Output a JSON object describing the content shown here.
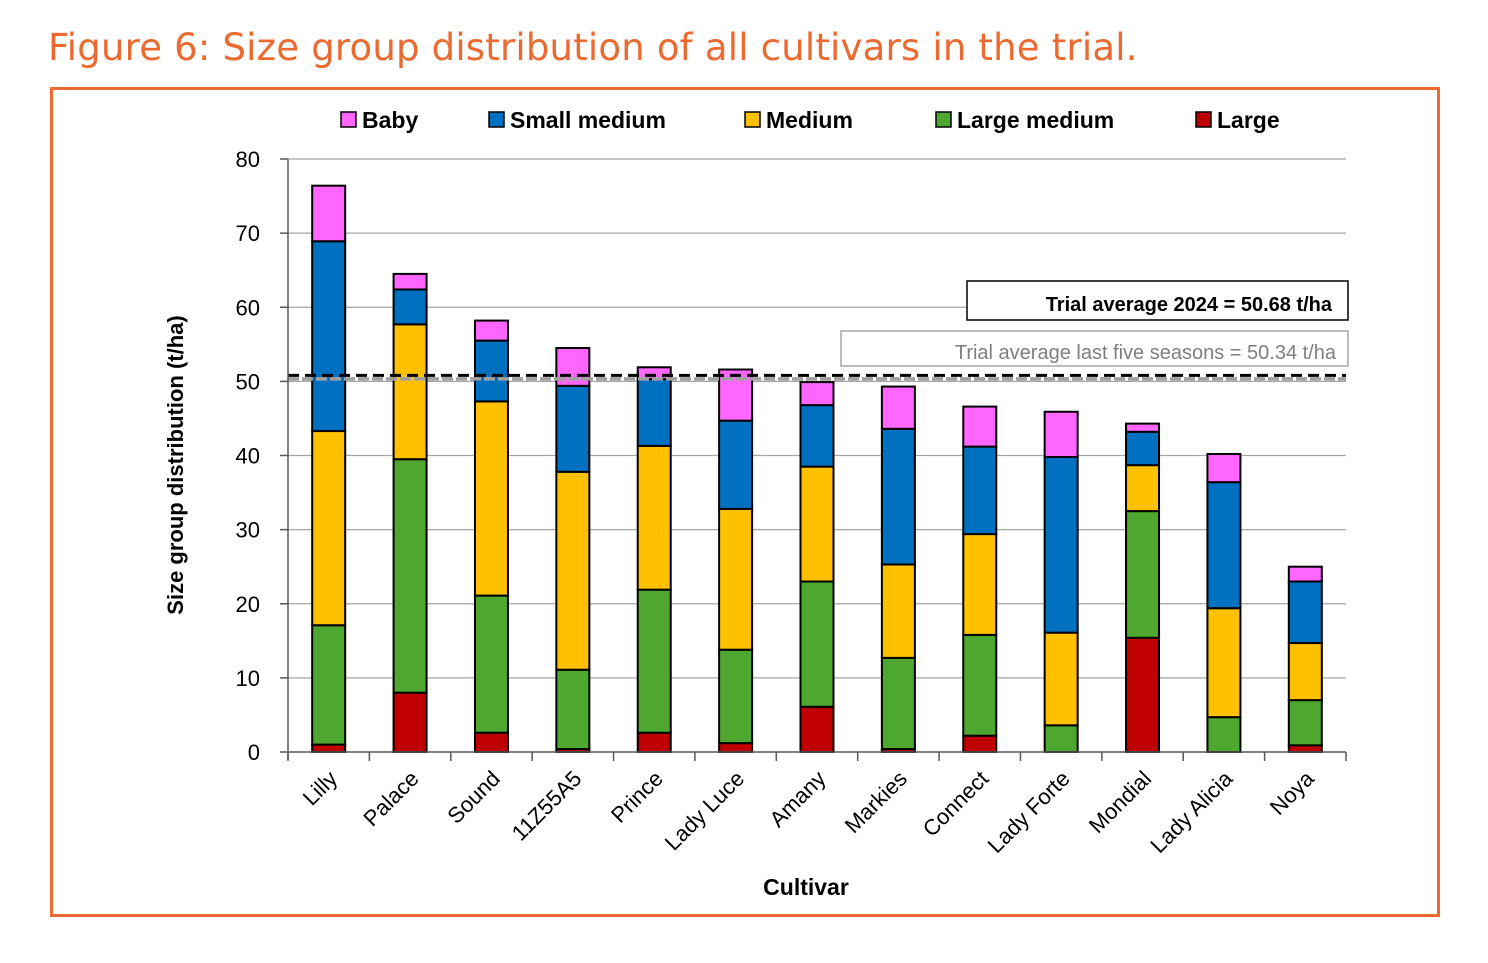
{
  "figure": {
    "title": "Figure 6: Size group distribution of all cultivars in the trial."
  },
  "chart_data": {
    "type": "bar",
    "stacked": true,
    "title": "",
    "xlabel": "Cultivar",
    "ylabel": "Size group distribution (t/ha)",
    "ylim": [
      0,
      80
    ],
    "yticks": [
      0,
      10,
      20,
      30,
      40,
      50,
      60,
      70,
      80
    ],
    "grid": true,
    "legend_position": "top",
    "categories": [
      "Lilly",
      "Palace",
      "Sound",
      "11Z55A5",
      "Prince",
      "Lady Luce",
      "Amany",
      "Markies",
      "Connect",
      "Lady Forte",
      "Mondial",
      "Lady Alicia",
      "Noya"
    ],
    "series": [
      {
        "name": "Large",
        "color": "#c00000",
        "values": [
          1.0,
          8.0,
          2.6,
          0.4,
          2.6,
          1.2,
          6.1,
          0.4,
          2.2,
          0.0,
          15.4,
          0.0,
          0.9
        ]
      },
      {
        "name": "Large medium",
        "color": "#4ea72e",
        "values": [
          16.1,
          31.5,
          18.5,
          10.7,
          19.3,
          12.6,
          16.9,
          12.3,
          13.6,
          3.6,
          17.1,
          4.7,
          6.1
        ]
      },
      {
        "name": "Medium",
        "color": "#ffc000",
        "values": [
          26.2,
          18.2,
          26.2,
          26.7,
          19.4,
          19.0,
          15.5,
          12.6,
          13.6,
          12.5,
          6.2,
          14.7,
          7.7
        ]
      },
      {
        "name": "Small medium",
        "color": "#0070c0",
        "values": [
          25.6,
          4.7,
          8.2,
          11.6,
          9.0,
          11.9,
          8.3,
          18.3,
          11.8,
          23.7,
          4.5,
          17.0,
          8.3
        ]
      },
      {
        "name": "Baby",
        "color": "#ff66ff",
        "values": [
          7.5,
          2.1,
          2.7,
          5.1,
          1.6,
          6.9,
          3.1,
          5.7,
          5.4,
          6.1,
          1.1,
          3.8,
          2.0
        ]
      }
    ],
    "legend_order": [
      "Baby",
      "Small medium",
      "Medium",
      "Large medium",
      "Large"
    ],
    "reference_lines": [
      {
        "name": "Trial average 2024",
        "value": 50.68,
        "label": "Trial average 2024 = 50.68 t/ha",
        "color": "#000000",
        "style": "dashed"
      },
      {
        "name": "Trial average last five seasons",
        "value": 50.34,
        "label": "Trial average last five seasons = 50.34 t/ha",
        "color": "#a0a0a0",
        "style": "dashed"
      }
    ]
  }
}
